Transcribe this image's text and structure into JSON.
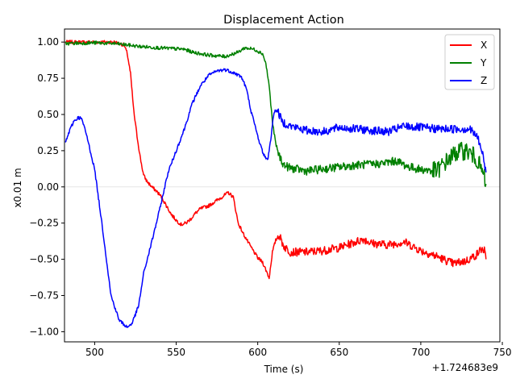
{
  "chart_data": {
    "type": "line",
    "title": "Displacement Action",
    "xlabel": "Time (s)",
    "ylabel": "x0.01 m",
    "x_offset_label": "+1.724683e9",
    "xlim": [
      481.5,
      748.5
    ],
    "ylim": [
      -1.07,
      1.09
    ],
    "xticks": [
      500,
      550,
      600,
      650,
      700,
      750
    ],
    "yticks": [
      1.0,
      0.75,
      0.5,
      0.25,
      0.0,
      -0.25,
      -0.5,
      -0.75,
      -1.0
    ],
    "ytick_labels": [
      "1.00",
      "0.75",
      "0.50",
      "0.25",
      "0.00",
      "−0.25",
      "−0.50",
      "−0.75",
      "−1.00"
    ],
    "grid": "horizontal line at y = 0",
    "legend_position": "top-right",
    "series": [
      {
        "name": "X",
        "color": "#ff0000",
        "noise": 0.012,
        "points": [
          [
            482,
            1.0
          ],
          [
            500,
            1.0
          ],
          [
            512,
            1.0
          ],
          [
            518,
            0.98
          ],
          [
            520,
            0.92
          ],
          [
            522,
            0.78
          ],
          [
            524,
            0.52
          ],
          [
            526,
            0.35
          ],
          [
            528,
            0.2
          ],
          [
            530,
            0.08
          ],
          [
            532,
            0.04
          ],
          [
            535,
            0.0
          ],
          [
            538,
            -0.03
          ],
          [
            541,
            -0.07
          ],
          [
            544,
            -0.13
          ],
          [
            547,
            -0.19
          ],
          [
            550,
            -0.23
          ],
          [
            553,
            -0.26
          ],
          [
            556,
            -0.25
          ],
          [
            559,
            -0.22
          ],
          [
            562,
            -0.18
          ],
          [
            565,
            -0.15
          ],
          [
            570,
            -0.13
          ],
          [
            574,
            -0.1
          ],
          [
            578,
            -0.07
          ],
          [
            582,
            -0.04
          ],
          [
            585,
            -0.07
          ],
          [
            588,
            -0.25
          ],
          [
            591,
            -0.32
          ],
          [
            595,
            -0.4
          ],
          [
            600,
            -0.49
          ],
          [
            603,
            -0.52
          ],
          [
            606,
            -0.6
          ],
          [
            607,
            -0.63
          ],
          [
            609,
            -0.45
          ],
          [
            611,
            -0.37
          ],
          [
            613,
            -0.33
          ],
          [
            616,
            -0.41
          ],
          [
            620,
            -0.45
          ],
          [
            630,
            -0.45
          ],
          [
            640,
            -0.44
          ],
          [
            650,
            -0.42
          ],
          [
            660,
            -0.38
          ],
          [
            665,
            -0.36
          ],
          [
            670,
            -0.39
          ],
          [
            680,
            -0.4
          ],
          [
            690,
            -0.38
          ],
          [
            700,
            -0.44
          ],
          [
            710,
            -0.48
          ],
          [
            720,
            -0.53
          ],
          [
            728,
            -0.51
          ],
          [
            734,
            -0.47
          ],
          [
            737,
            -0.43
          ],
          [
            739,
            -0.44
          ],
          [
            740,
            -0.5
          ]
        ]
      },
      {
        "name": "Y",
        "color": "#008000",
        "noise": 0.012,
        "points": [
          [
            482,
            0.99
          ],
          [
            500,
            0.995
          ],
          [
            512,
            0.99
          ],
          [
            520,
            0.98
          ],
          [
            527,
            0.97
          ],
          [
            540,
            0.96
          ],
          [
            555,
            0.95
          ],
          [
            560,
            0.93
          ],
          [
            570,
            0.91
          ],
          [
            580,
            0.9
          ],
          [
            588,
            0.93
          ],
          [
            592,
            0.96
          ],
          [
            598,
            0.95
          ],
          [
            603,
            0.92
          ],
          [
            605,
            0.85
          ],
          [
            607,
            0.7
          ],
          [
            609,
            0.45
          ],
          [
            611,
            0.3
          ],
          [
            613,
            0.22
          ],
          [
            616,
            0.15
          ],
          [
            620,
            0.13
          ],
          [
            630,
            0.11
          ],
          [
            645,
            0.13
          ],
          [
            660,
            0.15
          ],
          [
            675,
            0.16
          ],
          [
            685,
            0.18
          ],
          [
            692,
            0.14
          ],
          [
            700,
            0.12
          ],
          [
            710,
            0.11
          ],
          [
            716,
            0.18
          ],
          [
            722,
            0.24
          ],
          [
            728,
            0.25
          ],
          [
            734,
            0.2
          ],
          [
            737,
            0.12
          ],
          [
            739,
            0.06
          ],
          [
            740,
            0.02
          ]
        ]
      },
      {
        "name": "Z",
        "color": "#0000ff",
        "noise": 0.012,
        "points": [
          [
            482,
            0.3
          ],
          [
            484,
            0.37
          ],
          [
            487,
            0.45
          ],
          [
            490,
            0.48
          ],
          [
            492,
            0.47
          ],
          [
            495,
            0.36
          ],
          [
            500,
            0.12
          ],
          [
            505,
            -0.3
          ],
          [
            510,
            -0.75
          ],
          [
            515,
            -0.92
          ],
          [
            520,
            -0.97
          ],
          [
            523,
            -0.94
          ],
          [
            527,
            -0.82
          ],
          [
            530,
            -0.6
          ],
          [
            535,
            -0.38
          ],
          [
            540,
            -0.15
          ],
          [
            545,
            0.1
          ],
          [
            550,
            0.25
          ],
          [
            555,
            0.4
          ],
          [
            560,
            0.58
          ],
          [
            565,
            0.7
          ],
          [
            570,
            0.77
          ],
          [
            575,
            0.8
          ],
          [
            580,
            0.81
          ],
          [
            585,
            0.79
          ],
          [
            590,
            0.76
          ],
          [
            593,
            0.68
          ],
          [
            596,
            0.52
          ],
          [
            600,
            0.35
          ],
          [
            603,
            0.24
          ],
          [
            606,
            0.18
          ],
          [
            608,
            0.33
          ],
          [
            610,
            0.52
          ],
          [
            612,
            0.53
          ],
          [
            615,
            0.45
          ],
          [
            620,
            0.42
          ],
          [
            630,
            0.39
          ],
          [
            640,
            0.38
          ],
          [
            650,
            0.41
          ],
          [
            660,
            0.4
          ],
          [
            670,
            0.39
          ],
          [
            680,
            0.38
          ],
          [
            690,
            0.42
          ],
          [
            700,
            0.41
          ],
          [
            710,
            0.4
          ],
          [
            720,
            0.4
          ],
          [
            730,
            0.4
          ],
          [
            735,
            0.34
          ],
          [
            738,
            0.22
          ],
          [
            740,
            0.1
          ]
        ]
      }
    ]
  }
}
